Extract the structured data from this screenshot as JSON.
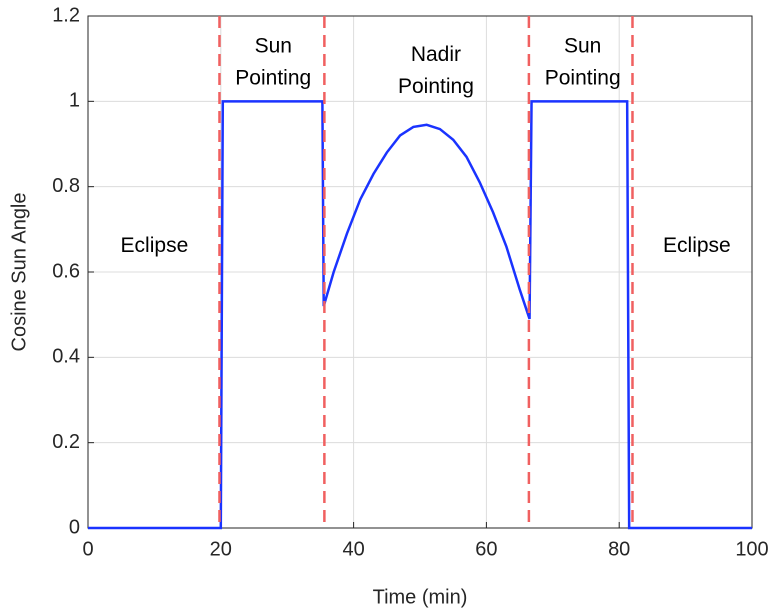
{
  "chart_data": {
    "type": "line",
    "xlabel": "Time (min)",
    "ylabel": "Cosine Sun Angle",
    "xlim": [
      0,
      100
    ],
    "ylim": [
      0,
      1.2
    ],
    "xticks": [
      0,
      20,
      40,
      60,
      80,
      100
    ],
    "yticks": [
      0,
      0.2,
      0.4,
      0.6,
      0.8,
      1,
      1.2
    ],
    "grid": true,
    "series": [
      {
        "color": "#1a33ff",
        "x": [
          0,
          20,
          20.3,
          35.3,
          35.5,
          37,
          39,
          41,
          43,
          45,
          47,
          49,
          51,
          53,
          55,
          57,
          59,
          61,
          63,
          65,
          66.5,
          66.8,
          81.2,
          81.5,
          100
        ],
        "values": [
          0,
          0,
          1,
          1,
          0.52,
          0.6,
          0.69,
          0.77,
          0.83,
          0.88,
          0.92,
          0.94,
          0.945,
          0.935,
          0.91,
          0.87,
          0.81,
          0.74,
          0.66,
          0.56,
          0.49,
          1,
          1,
          0,
          0
        ]
      }
    ],
    "vlines": {
      "color": "#f06060",
      "x": [
        19.8,
        35.6,
        66.4,
        82
      ]
    },
    "annotations": [
      {
        "lines": [
          "Eclipse"
        ],
        "x": 10,
        "y": 0.66
      },
      {
        "lines": [
          "Sun",
          "Pointing"
        ],
        "x": 27.9,
        "y": 1.09
      },
      {
        "lines": [
          "Nadir",
          "Pointing"
        ],
        "x": 52.4,
        "y": 1.07
      },
      {
        "lines": [
          "Sun",
          "Pointing"
        ],
        "x": 74.5,
        "y": 1.09
      },
      {
        "lines": [
          "Eclipse"
        ],
        "x": 91.7,
        "y": 0.66
      }
    ]
  }
}
